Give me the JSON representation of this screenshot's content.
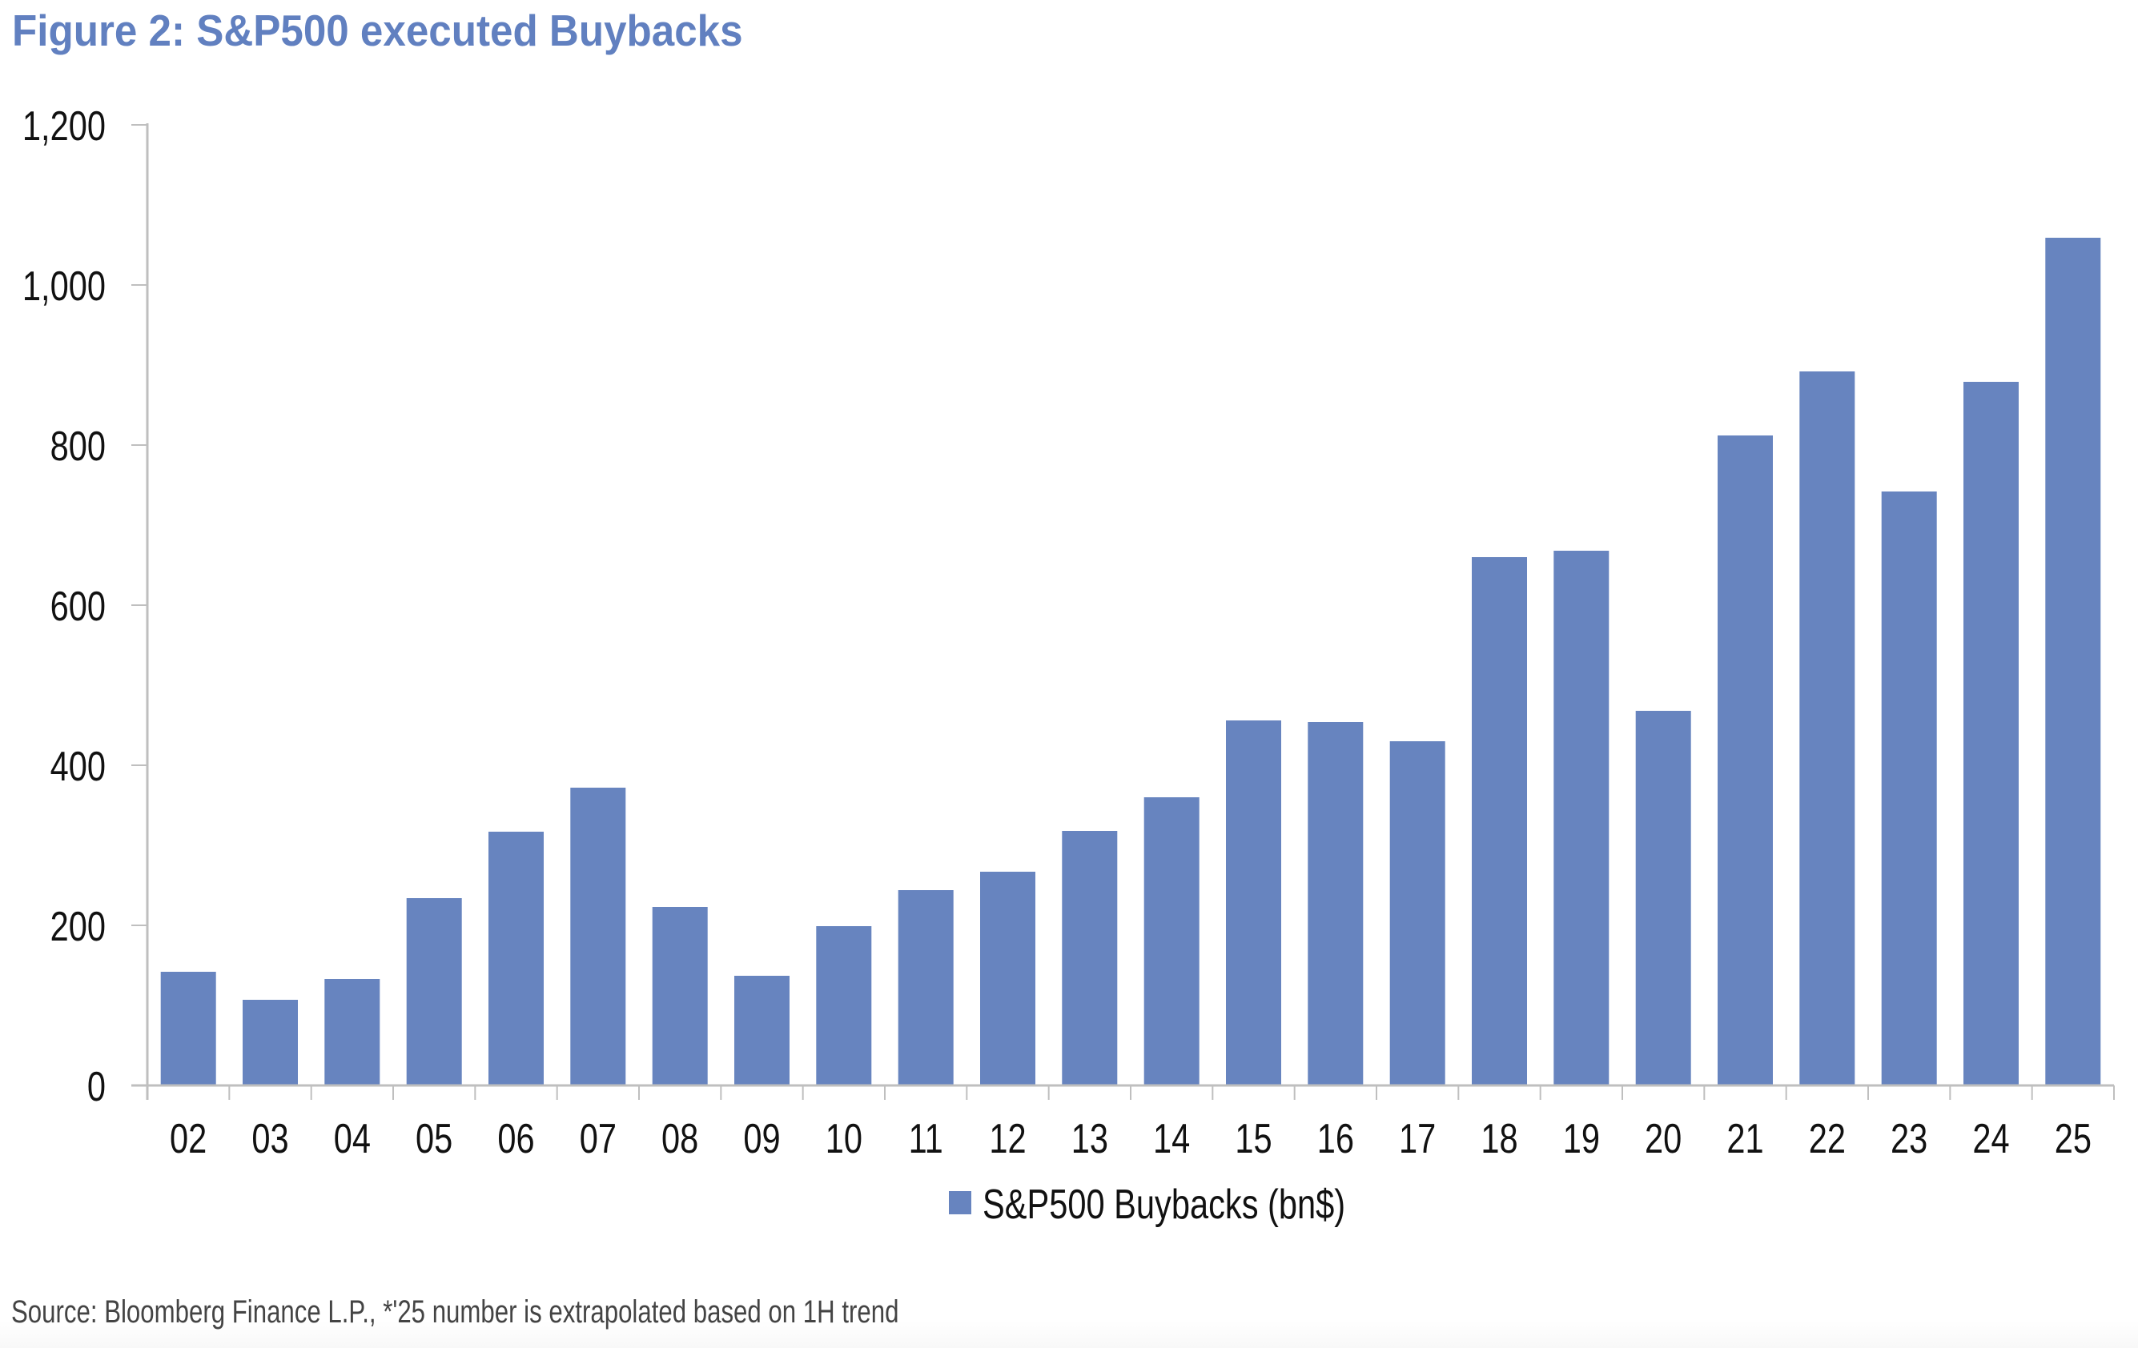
{
  "title": "Figure 2: S&P500 executed Buybacks",
  "source": "Source: Bloomberg Finance L.P., *'25 number is extrapolated based on 1H trend",
  "colors": {
    "title": "#6180c0",
    "bar": "#6784bf",
    "axis": "#bfbfbf",
    "text": "#111111",
    "source": "#444444"
  },
  "chart_data": {
    "type": "bar",
    "title": "Figure 2: S&P500 executed Buybacks",
    "xlabel": "",
    "ylabel": "",
    "categories": [
      "02",
      "03",
      "04",
      "05",
      "06",
      "07",
      "08",
      "09",
      "10",
      "11",
      "12",
      "13",
      "14",
      "15",
      "16",
      "17",
      "18",
      "19",
      "20",
      "21",
      "22",
      "23",
      "24",
      "25"
    ],
    "series": [
      {
        "name": "S&P500 Buybacks (bn$)",
        "values": [
          142,
          107,
          133,
          234,
          317,
          372,
          223,
          137,
          199,
          244,
          267,
          318,
          360,
          456,
          454,
          430,
          660,
          668,
          468,
          812,
          892,
          742,
          879,
          1059
        ]
      }
    ],
    "ylim": [
      0,
      1200
    ],
    "yticks": [
      0,
      200,
      400,
      600,
      800,
      1000,
      1200
    ],
    "ytick_labels": [
      "0",
      "200",
      "400",
      "600",
      "800",
      "1,000",
      "1,200"
    ],
    "grid": false,
    "legend_position": "bottom"
  }
}
